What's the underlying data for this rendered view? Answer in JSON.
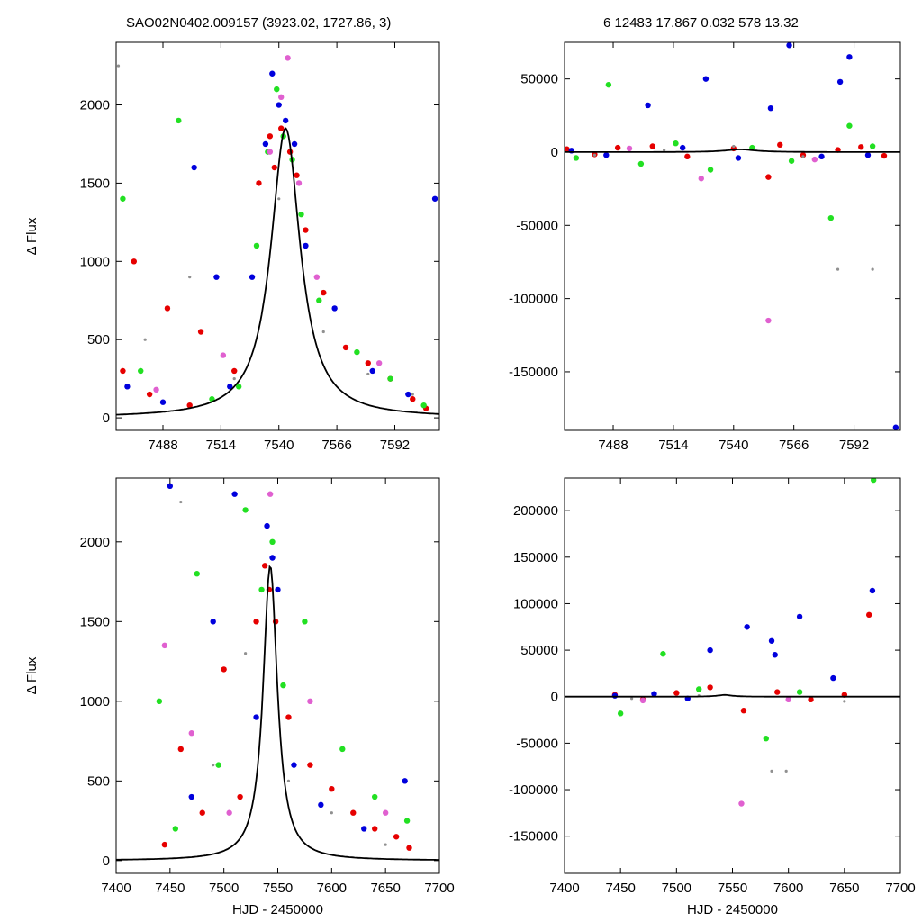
{
  "header": {
    "title": "SAO02N0402.009157 (3923.02, 1727.86,    3)",
    "stats": "6   12483    17.867    0.032    578    13.32"
  },
  "colors": {
    "red": "#e60000",
    "green": "#22e022",
    "blue": "#0000dd",
    "violet": "#e060d0",
    "gray": "#909090",
    "model": "#000000"
  },
  "model": {
    "t0": 7543,
    "peak": 1850,
    "width": 8
  },
  "chart_data": [
    {
      "type": "scatter",
      "panel": "top-left",
      "xlabel": "",
      "ylabel": "Δ Flux",
      "xlim": [
        7467,
        7612
      ],
      "ylim": [
        -80,
        2400
      ],
      "xticks": [
        7488,
        7514,
        7540,
        7566,
        7592
      ],
      "yticks": [
        0,
        500,
        1000,
        1500,
        2000
      ],
      "series": [
        {
          "color": "red",
          "x": [
            7470,
            7475,
            7482,
            7490,
            7500,
            7505,
            7520,
            7531,
            7536,
            7538,
            7541,
            7545,
            7548,
            7552,
            7560,
            7570,
            7580,
            7590,
            7600,
            7606
          ],
          "y": [
            300,
            1000,
            150,
            700,
            80,
            550,
            300,
            1500,
            1800,
            1600,
            1850,
            1700,
            1550,
            1200,
            800,
            450,
            350,
            250,
            120,
            60
          ]
        },
        {
          "color": "green",
          "x": [
            7470,
            7478,
            7495,
            7510,
            7522,
            7530,
            7535,
            7539,
            7542,
            7546,
            7550,
            7558,
            7575,
            7590,
            7605
          ],
          "y": [
            1400,
            300,
            1900,
            120,
            200,
            1100,
            1700,
            2100,
            1800,
            1650,
            1300,
            750,
            420,
            250,
            80
          ]
        },
        {
          "color": "blue",
          "x": [
            7472,
            7488,
            7502,
            7512,
            7518,
            7528,
            7534,
            7537,
            7540,
            7543,
            7547,
            7552,
            7565,
            7582,
            7598,
            7610
          ],
          "y": [
            200,
            100,
            1600,
            900,
            200,
            900,
            1750,
            2200,
            2000,
            1900,
            1750,
            1100,
            700,
            300,
            150,
            1400
          ]
        },
        {
          "color": "violet",
          "x": [
            7485,
            7515,
            7536,
            7541,
            7544,
            7549,
            7557,
            7585
          ],
          "y": [
            180,
            400,
            1700,
            2050,
            2300,
            1500,
            900,
            350
          ]
        },
        {
          "color": "gray",
          "x": [
            7468,
            7480,
            7500,
            7520,
            7540,
            7560,
            7580,
            7600
          ],
          "y": [
            2250,
            500,
            900,
            250,
            1400,
            550,
            280,
            150
          ]
        }
      ],
      "model_curve": true
    },
    {
      "type": "scatter",
      "panel": "top-right",
      "xlabel": "",
      "ylabel": "",
      "xlim": [
        7467,
        7612
      ],
      "ylim": [
        -190000,
        75000
      ],
      "xticks": [
        7488,
        7514,
        7540,
        7566,
        7592
      ],
      "yticks": [
        50000,
        0,
        -50000,
        -100000,
        -150000
      ],
      "series": [
        {
          "color": "red",
          "x": [
            7468,
            7480,
            7490,
            7505,
            7520,
            7540,
            7555,
            7560,
            7570,
            7585,
            7595,
            7605
          ],
          "y": [
            2000,
            -1500,
            3000,
            4000,
            -3000,
            2500,
            -17000,
            5000,
            -2000,
            1500,
            3500,
            -2500
          ]
        },
        {
          "color": "green",
          "x": [
            7472,
            7486,
            7500,
            7515,
            7530,
            7548,
            7565,
            7582,
            7590,
            7600
          ],
          "y": [
            -4000,
            46000,
            -8000,
            6000,
            -12000,
            3000,
            -6000,
            -45000,
            18000,
            4000
          ]
        },
        {
          "color": "blue",
          "x": [
            7470,
            7485,
            7503,
            7518,
            7528,
            7542,
            7556,
            7564,
            7578,
            7586,
            7590,
            7598,
            7610
          ],
          "y": [
            1000,
            -2000,
            32000,
            3000,
            50000,
            -4000,
            30000,
            73000,
            -3000,
            48000,
            65000,
            -2000,
            -188000
          ]
        },
        {
          "color": "violet",
          "x": [
            7495,
            7526,
            7555,
            7575
          ],
          "y": [
            2500,
            -18000,
            -115000,
            -5000
          ]
        },
        {
          "color": "gray",
          "x": [
            7480,
            7510,
            7540,
            7570,
            7585,
            7600
          ],
          "y": [
            -2000,
            1500,
            4000,
            -3000,
            -80000,
            -80000
          ]
        }
      ],
      "model_curve": true
    },
    {
      "type": "scatter",
      "panel": "bottom-left",
      "xlabel": "HJD - 2450000",
      "ylabel": "Δ Flux",
      "xlim": [
        7400,
        7700
      ],
      "ylim": [
        -80,
        2400
      ],
      "xticks": [
        7400,
        7450,
        7500,
        7550,
        7600,
        7650,
        7700
      ],
      "yticks": [
        0,
        500,
        1000,
        1500,
        2000
      ],
      "series": [
        {
          "color": "red",
          "x": [
            7445,
            7460,
            7480,
            7500,
            7515,
            7530,
            7538,
            7542,
            7548,
            7560,
            7580,
            7600,
            7620,
            7640,
            7660,
            7672
          ],
          "y": [
            100,
            700,
            300,
            1200,
            400,
            1500,
            1850,
            1700,
            1500,
            900,
            600,
            450,
            300,
            200,
            150,
            80
          ]
        },
        {
          "color": "green",
          "x": [
            7440,
            7455,
            7475,
            7495,
            7520,
            7535,
            7545,
            7555,
            7575,
            7610,
            7640,
            7670
          ],
          "y": [
            1000,
            200,
            1800,
            600,
            2200,
            1700,
            2000,
            1100,
            1500,
            700,
            400,
            250
          ]
        },
        {
          "color": "blue",
          "x": [
            7450,
            7470,
            7490,
            7510,
            7530,
            7540,
            7545,
            7550,
            7565,
            7590,
            7630,
            7668
          ],
          "y": [
            2350,
            400,
            1500,
            2300,
            900,
            2100,
            1900,
            1700,
            600,
            350,
            200,
            500
          ]
        },
        {
          "color": "violet",
          "x": [
            7445,
            7470,
            7505,
            7543,
            7580,
            7650
          ],
          "y": [
            1350,
            800,
            300,
            2300,
            1000,
            300
          ]
        },
        {
          "color": "gray",
          "x": [
            7460,
            7490,
            7520,
            7560,
            7600,
            7650
          ],
          "y": [
            2250,
            600,
            1300,
            500,
            300,
            100
          ]
        }
      ],
      "model_curve": true
    },
    {
      "type": "scatter",
      "panel": "bottom-right",
      "xlabel": "HJD - 2450000",
      "ylabel": "",
      "xlim": [
        7400,
        7700
      ],
      "ylim": [
        -190000,
        235000
      ],
      "xticks": [
        7400,
        7450,
        7500,
        7550,
        7600,
        7650,
        7700
      ],
      "yticks": [
        200000,
        150000,
        100000,
        50000,
        0,
        -50000,
        -100000,
        -150000
      ],
      "series": [
        {
          "color": "red",
          "x": [
            7445,
            7470,
            7500,
            7530,
            7560,
            7590,
            7620,
            7650,
            7672
          ],
          "y": [
            2000,
            -3000,
            4000,
            10000,
            -15000,
            5000,
            -3000,
            2000,
            88000
          ]
        },
        {
          "color": "green",
          "x": [
            7450,
            7488,
            7520,
            7580,
            7610,
            7676
          ],
          "y": [
            -18000,
            46000,
            8000,
            -45000,
            5000,
            233000
          ]
        },
        {
          "color": "blue",
          "x": [
            7445,
            7480,
            7510,
            7530,
            7563,
            7585,
            7588,
            7610,
            7640,
            7675
          ],
          "y": [
            1000,
            3000,
            -2000,
            50000,
            75000,
            60000,
            45000,
            86000,
            20000,
            114000
          ]
        },
        {
          "color": "violet",
          "x": [
            7470,
            7558,
            7600
          ],
          "y": [
            -4000,
            -115000,
            -3000
          ]
        },
        {
          "color": "gray",
          "x": [
            7460,
            7520,
            7585,
            7598,
            7650
          ],
          "y": [
            -2000,
            1000,
            -80000,
            -80000,
            -5000
          ]
        }
      ],
      "model_curve": true
    }
  ]
}
